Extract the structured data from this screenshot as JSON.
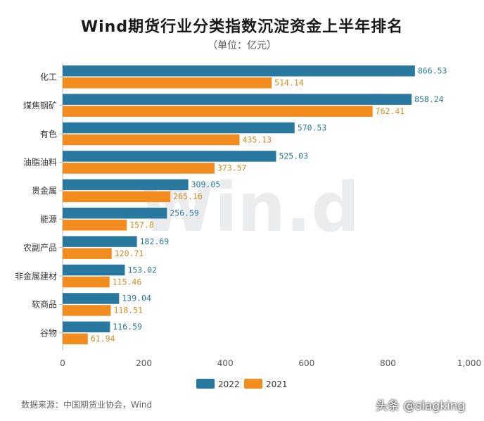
{
  "chart_data": {
    "type": "bar",
    "orientation": "horizontal",
    "title": "Wind期货行业分类指数沉淀资金上半年排名",
    "subtitle": "（单位：亿元）",
    "categories": [
      "化工",
      "煤焦钢矿",
      "有色",
      "油脂油料",
      "贵金属",
      "能源",
      "农副产品",
      "非金属建材",
      "软商品",
      "谷物"
    ],
    "series": [
      {
        "name": "2022",
        "color": "#2878a0",
        "label_color": "#2878a0",
        "values": [
          866.53,
          858.24,
          570.53,
          525.03,
          309.05,
          256.59,
          182.69,
          153.02,
          139.04,
          116.59
        ]
      },
      {
        "name": "2021",
        "color": "#f28c1e",
        "label_color": "#d88a20",
        "values": [
          514.14,
          762.41,
          435.13,
          373.57,
          265.16,
          157.8,
          120.71,
          115.46,
          118.51,
          61.94
        ]
      }
    ],
    "value_labels": [
      [
        "866.53",
        "858.24",
        "570.53",
        "525.03",
        "309.05",
        "256.59",
        "182.69",
        "153.02",
        "139.04",
        "116.59"
      ],
      [
        "514.14",
        "762.41",
        "435.13",
        "373.57",
        "265.16",
        "157.8",
        "120.71",
        "115.46",
        "118.51",
        "61.94"
      ]
    ],
    "xlim": [
      0,
      1000
    ],
    "x_ticks": [
      0,
      200,
      400,
      600,
      800,
      1000
    ],
    "x_tick_labels": [
      "0",
      "200",
      "400",
      "600",
      "800",
      "1,000"
    ],
    "grid": false,
    "legend_position": "bottom"
  },
  "watermark": "Win.d",
  "source": "数据来源：中国期货业协会，Wind",
  "credit": "头条 @slagking"
}
